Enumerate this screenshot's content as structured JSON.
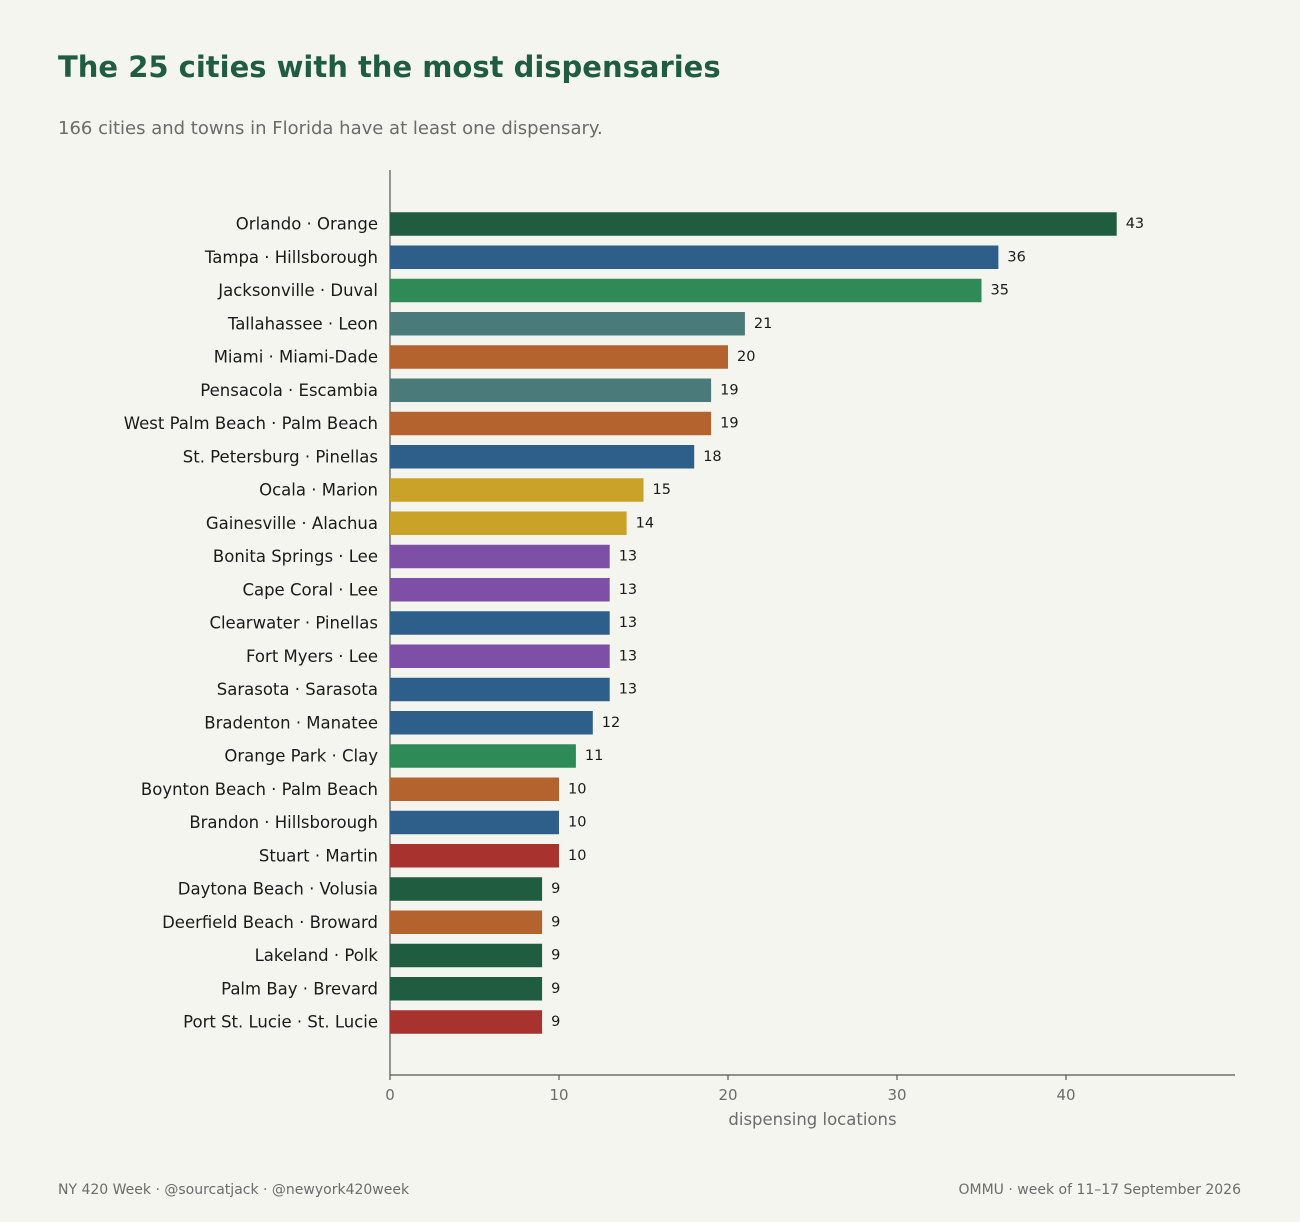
{
  "header": {
    "title": "The 25 cities with the most dispensaries",
    "subtitle": "166 cities and towns in Florida have at least one dispensary."
  },
  "footer": {
    "left": "NY 420 Week  ·  @sourcatjack · @newyork420week",
    "right": "OMMU · week of 11–17 September 2026"
  },
  "chart_data": {
    "type": "bar",
    "orientation": "horizontal",
    "title": "The 25 cities with the most dispensaries",
    "subtitle": "166 cities and towns in Florida have at least one dispensary.",
    "xlabel": "dispensing locations",
    "ylabel": "",
    "xlim": [
      0,
      50
    ],
    "xticks": [
      0,
      10,
      20,
      30,
      40
    ],
    "grid": false,
    "categories": [
      "Orlando · Orange",
      "Tampa · Hillsborough",
      "Jacksonville · Duval",
      "Tallahassee · Leon",
      "Miami · Miami-Dade",
      "Pensacola · Escambia",
      "West Palm Beach · Palm Beach",
      "St. Petersburg · Pinellas",
      "Ocala · Marion",
      "Gainesville · Alachua",
      "Bonita Springs · Lee",
      "Cape Coral · Lee",
      "Clearwater · Pinellas",
      "Fort Myers · Lee",
      "Sarasota · Sarasota",
      "Bradenton · Manatee",
      "Orange Park · Clay",
      "Boynton Beach · Palm Beach",
      "Brandon · Hillsborough",
      "Stuart · Martin",
      "Daytona Beach · Volusia",
      "Deerfield Beach · Broward",
      "Lakeland · Polk",
      "Palm Bay · Brevard",
      "Port St. Lucie · St. Lucie"
    ],
    "values": [
      43,
      36,
      35,
      21,
      20,
      19,
      19,
      18,
      15,
      14,
      13,
      13,
      13,
      13,
      13,
      12,
      11,
      10,
      10,
      10,
      9,
      9,
      9,
      9,
      9
    ],
    "colors": [
      "#1f5c40",
      "#2e5e8a",
      "#2e8b57",
      "#4a7b7a",
      "#b5632e",
      "#4a7b7a",
      "#b5632e",
      "#2e5e8a",
      "#c9a227",
      "#c9a227",
      "#7e4fa6",
      "#7e4fa6",
      "#2e5e8a",
      "#7e4fa6",
      "#2e5e8a",
      "#2e5e8a",
      "#2e8b57",
      "#b5632e",
      "#2e5e8a",
      "#a8332e",
      "#1f5c40",
      "#b5632e",
      "#1f5c40",
      "#1f5c40",
      "#a8332e"
    ],
    "axis_color": "#555555"
  }
}
